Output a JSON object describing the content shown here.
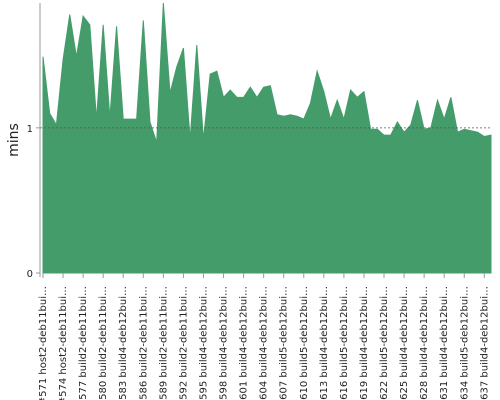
{
  "chart_data": {
    "type": "area",
    "y_label": "mins",
    "categories": [
      "#571 host2-deb11bui…",
      null,
      null,
      "#574 host2-deb11bui…",
      null,
      null,
      "#577 build2-deb11bui…",
      null,
      null,
      "#580 build2-deb11bui…",
      null,
      null,
      "#583 build4-deb12bui…",
      null,
      null,
      "#586 build2-deb11bui…",
      null,
      null,
      "#589 build2-deb11bui…",
      null,
      null,
      "#592 build2-deb11bui…",
      null,
      null,
      "#595 build4-deb12bui…",
      null,
      null,
      "#598 build4-deb12bui…",
      null,
      null,
      "#601 build4-deb12bui…",
      null,
      null,
      "#604 build4-deb12bui…",
      null,
      null,
      "#607 build5-deb12bui…",
      null,
      null,
      "#610 build5-deb12bui…",
      null,
      null,
      "#613 build4-deb12bui…",
      null,
      null,
      "#616 build5-deb12bui…",
      null,
      null,
      "#619 build4-deb12bui…",
      null,
      null,
      "#622 build5-deb12bui…",
      null,
      null,
      "#625 build4-deb12bui…",
      null,
      null,
      "#628 build4-deb12bui…",
      null,
      null,
      "#631 build4-deb12bui…",
      null,
      null,
      "#634 build5-deb12bui…",
      null,
      null,
      "#637 build4-deb12bui…",
      null
    ],
    "values": [
      1.49,
      1.1,
      1.02,
      1.47,
      1.78,
      1.49,
      1.77,
      1.71,
      1.06,
      1.71,
      1.07,
      1.7,
      1.06,
      1.06,
      1.06,
      1.74,
      1.04,
      0.9,
      1.86,
      1.24,
      1.42,
      1.55,
      0.92,
      1.57,
      0.92,
      1.37,
      1.39,
      1.21,
      1.26,
      1.21,
      1.21,
      1.28,
      1.21,
      1.28,
      1.29,
      1.09,
      1.08,
      1.09,
      1.08,
      1.06,
      1.17,
      1.39,
      1.25,
      1.06,
      1.19,
      1.06,
      1.26,
      1.21,
      1.25,
      0.99,
      0.99,
      0.95,
      0.95,
      1.04,
      0.97,
      1.02,
      1.19,
      0.99,
      1.0,
      1.19,
      1.06,
      1.21,
      0.97,
      0.99,
      0.98,
      0.97,
      0.94,
      0.95
    ],
    "color": "#459c6b",
    "ylim": [
      0,
      1.86
    ],
    "yticks": [
      0,
      1
    ],
    "grid": true
  }
}
